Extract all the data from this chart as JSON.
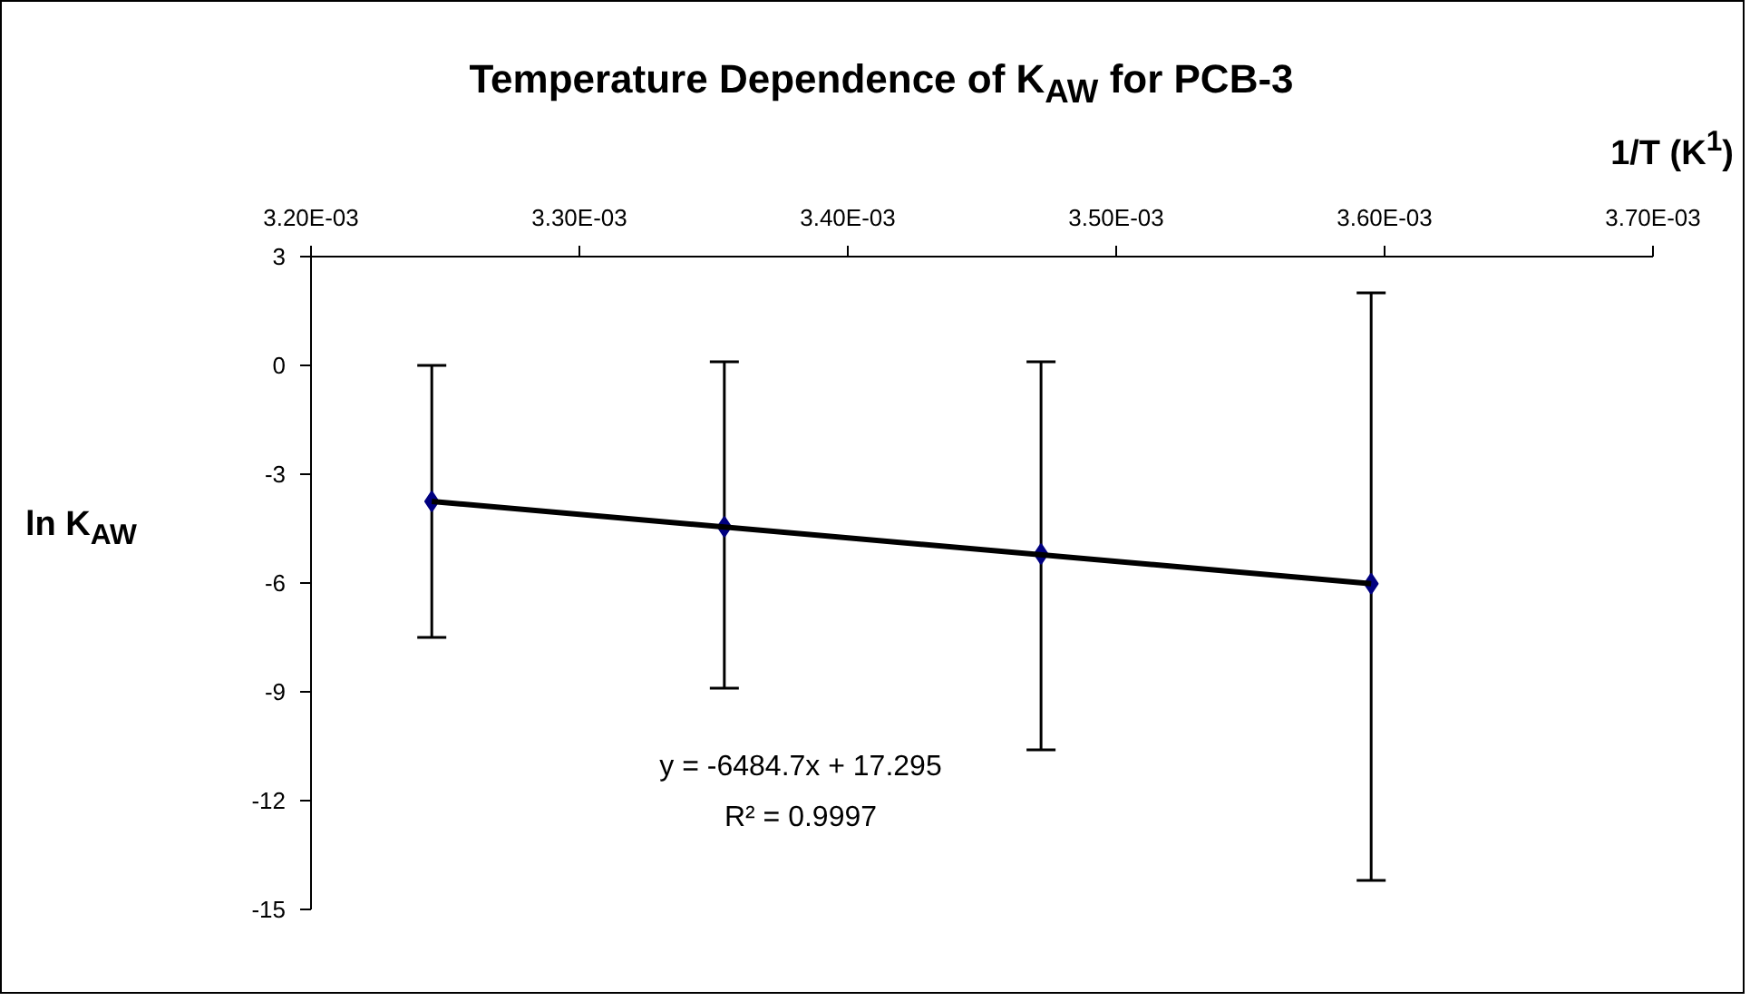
{
  "chart_data": {
    "type": "scatter",
    "title": "Temperature Dependence of K$_{AW}$ for PCB-3",
    "xlabel": "1/T (K$^{1}$)",
    "ylabel": "ln K$_{AW}$",
    "xlim": [
      0.0032,
      0.0037
    ],
    "xticks": [
      {
        "value": 0.0032,
        "label": "3.20E-03"
      },
      {
        "value": 0.0033,
        "label": "3.30E-03"
      },
      {
        "value": 0.0034,
        "label": "3.40E-03"
      },
      {
        "value": 0.0035,
        "label": "3.50E-03"
      },
      {
        "value": 0.0036,
        "label": "3.60E-03"
      },
      {
        "value": 0.0037,
        "label": "3.70E-03"
      }
    ],
    "ylim": [
      -15,
      3
    ],
    "yticks": [
      -15,
      -12,
      -9,
      -6,
      -3,
      0,
      3
    ],
    "grid": false,
    "series": [
      {
        "type": "line",
        "x": [
          0.003245,
          0.003595
        ],
        "values": [
          -3.75,
          -6.02
        ],
        "color": "#000000",
        "marker": "none",
        "line_style": "solid"
      },
      {
        "x": [
          0.003245,
          0.003354,
          0.003472,
          0.003595
        ],
        "values": [
          -3.75,
          -4.45,
          -5.2,
          -6.02
        ],
        "color": "#000080",
        "marker": "diamond",
        "errors": [
          [
            -7.5,
            0
          ],
          [
            -8.9,
            0.1
          ],
          [
            -10.6,
            0.1
          ],
          [
            -14.2,
            2.0
          ]
        ]
      }
    ],
    "annotations": [
      "y = -6484.7x + 17.295",
      "R² = 0.9997"
    ]
  }
}
